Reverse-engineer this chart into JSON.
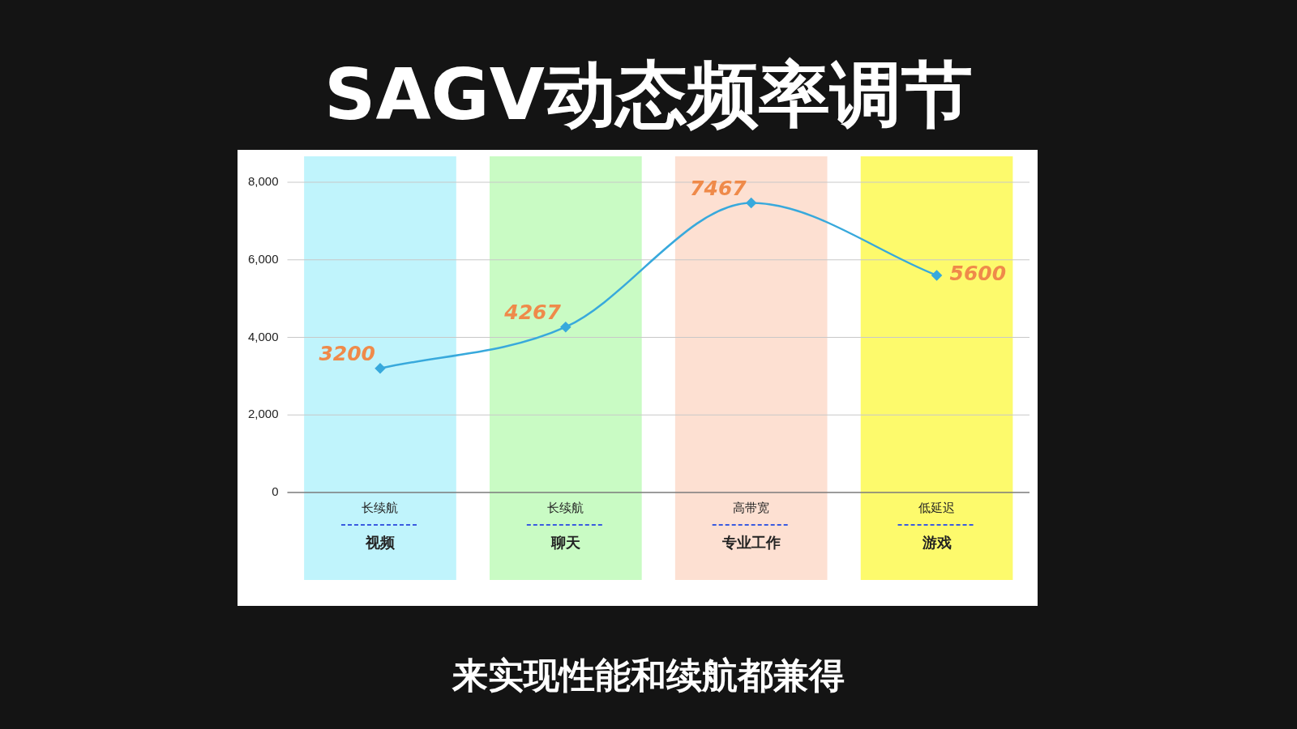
{
  "chart_data": {
    "type": "line",
    "title": "SAGV动态频率调节",
    "categories": [
      "视频",
      "聊天",
      "专业工作",
      "游戏"
    ],
    "series": [
      {
        "color": "#38a9dc",
        "values": [
          3200,
          4267,
          7467,
          5600
        ]
      }
    ],
    "ylim": [
      0,
      8000
    ],
    "yticks": [
      {
        "value": 0,
        "label": "0"
      },
      {
        "value": 2000,
        "label": "2,000"
      },
      {
        "value": 4000,
        "label": "4,000"
      },
      {
        "value": 6000,
        "label": "6,000"
      },
      {
        "value": 8000,
        "label": "8,000"
      }
    ],
    "grid": "y",
    "legend": false,
    "marker": "diamond",
    "line_style": "solid",
    "data_labels": true,
    "bands": [
      {
        "axis": "x",
        "from": "视频",
        "to": "视频",
        "color": "#c0f4fc",
        "label": "长续航"
      },
      {
        "axis": "x",
        "from": "聊天",
        "to": "聊天",
        "color": "#c9fbc4",
        "label": "长续航"
      },
      {
        "axis": "x",
        "from": "专业工作",
        "to": "专业工作",
        "color": "#fde0d2",
        "label": "高带宽"
      },
      {
        "axis": "x",
        "from": "游戏",
        "to": "游戏",
        "color": "#fdfa6c",
        "label": "低延迟"
      }
    ],
    "annotations": [
      "来实现性能和续航都兼得"
    ]
  }
}
